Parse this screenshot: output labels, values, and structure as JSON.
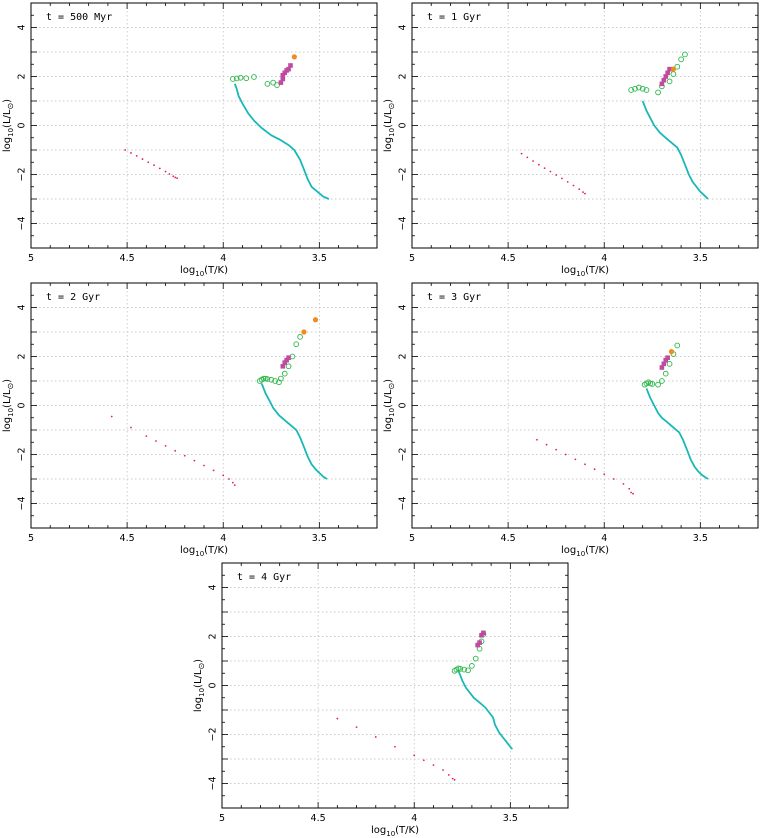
{
  "colors": {
    "main_sequence": "#19b8b8",
    "low_mass": "#e0206e",
    "giant_ring": "#2db84a",
    "agb": "#c04aa0",
    "supergiant": "#f08c1e"
  },
  "chart_data": [
    {
      "type": "scatter",
      "title": "t = 500 Myr",
      "xlabel": "log10(T/K)",
      "ylabel": "log10(L/L⊙)",
      "xlim": [
        5,
        3.2
      ],
      "ylim": [
        -5,
        5
      ],
      "grid": true,
      "xticks": [
        "5",
        "4.5",
        "4",
        "3.5"
      ],
      "yticks": [
        "4",
        "2",
        "0",
        "−2",
        "−4"
      ],
      "series": [
        {
          "kind": "line",
          "color_key": "main_sequence",
          "x": [
            3.94,
            3.93,
            3.92,
            3.9,
            3.87,
            3.84,
            3.8,
            3.75,
            3.7,
            3.66,
            3.63,
            3.6,
            3.58,
            3.56,
            3.54,
            3.51,
            3.48,
            3.45
          ],
          "y": [
            1.7,
            1.5,
            1.2,
            0.9,
            0.5,
            0.2,
            -0.1,
            -0.4,
            -0.6,
            -0.8,
            -1.0,
            -1.4,
            -1.8,
            -2.2,
            -2.5,
            -2.7,
            -2.9,
            -3.0
          ]
        },
        {
          "kind": "dots",
          "color_key": "low_mass",
          "x": [
            4.51,
            4.48,
            4.45,
            4.42,
            4.39,
            4.36,
            4.33,
            4.3,
            4.28,
            4.26,
            4.25,
            4.24
          ],
          "y": [
            -1.0,
            -1.12,
            -1.24,
            -1.37,
            -1.5,
            -1.62,
            -1.75,
            -1.88,
            -1.98,
            -2.07,
            -2.12,
            -2.15
          ]
        },
        {
          "kind": "rings",
          "color_key": "giant_ring",
          "x": [
            3.95,
            3.93,
            3.91,
            3.88,
            3.84,
            3.77,
            3.74,
            3.72
          ],
          "y": [
            1.9,
            1.92,
            1.95,
            1.93,
            1.98,
            1.7,
            1.75,
            1.65
          ]
        },
        {
          "kind": "squares",
          "color_key": "agb",
          "x": [
            3.7,
            3.69,
            3.69,
            3.68,
            3.67,
            3.66,
            3.65
          ],
          "y": [
            1.75,
            1.9,
            2.05,
            2.15,
            2.25,
            2.3,
            2.45
          ]
        },
        {
          "kind": "disks",
          "color_key": "supergiant",
          "x": [
            3.63
          ],
          "y": [
            2.8
          ]
        }
      ]
    },
    {
      "type": "scatter",
      "title": "t = 1 Gyr",
      "xlabel": "log10(T/K)",
      "ylabel": "log10(L/L⊙)",
      "xlim": [
        5,
        3.2
      ],
      "ylim": [
        -5,
        5
      ],
      "grid": true,
      "xticks": [
        "5",
        "4.5",
        "4",
        "3.5"
      ],
      "yticks": [
        "4",
        "2",
        "0",
        "−2",
        "−4"
      ],
      "series": [
        {
          "kind": "line",
          "color_key": "main_sequence",
          "x": [
            3.8,
            3.79,
            3.78,
            3.76,
            3.74,
            3.71,
            3.68,
            3.65,
            3.62,
            3.6,
            3.58,
            3.56,
            3.54,
            3.52,
            3.5,
            3.48,
            3.46
          ],
          "y": [
            1.0,
            0.8,
            0.6,
            0.3,
            0.0,
            -0.3,
            -0.5,
            -0.7,
            -0.9,
            -1.2,
            -1.6,
            -2.0,
            -2.3,
            -2.5,
            -2.7,
            -2.85,
            -3.0
          ]
        },
        {
          "kind": "dots",
          "color_key": "low_mass",
          "x": [
            4.43,
            4.4,
            4.37,
            4.34,
            4.31,
            4.28,
            4.25,
            4.22,
            4.19,
            4.16,
            4.13,
            4.11,
            4.1
          ],
          "y": [
            -1.15,
            -1.3,
            -1.45,
            -1.6,
            -1.74,
            -1.88,
            -2.02,
            -2.16,
            -2.3,
            -2.45,
            -2.6,
            -2.72,
            -2.78
          ]
        },
        {
          "kind": "rings",
          "color_key": "giant_ring",
          "x": [
            3.86,
            3.84,
            3.82,
            3.8,
            3.78,
            3.72,
            3.7,
            3.66,
            3.64,
            3.62,
            3.6,
            3.58
          ],
          "y": [
            1.45,
            1.5,
            1.55,
            1.5,
            1.45,
            1.35,
            1.6,
            1.8,
            2.1,
            2.4,
            2.7,
            2.9
          ]
        },
        {
          "kind": "squares",
          "color_key": "agb",
          "x": [
            3.7,
            3.69,
            3.68,
            3.67,
            3.66
          ],
          "y": [
            1.7,
            1.85,
            2.0,
            2.15,
            2.3
          ]
        },
        {
          "kind": "disks",
          "color_key": "supergiant",
          "x": [
            3.64
          ],
          "y": [
            2.3
          ]
        }
      ]
    },
    {
      "type": "scatter",
      "title": "t = 2 Gyr",
      "xlabel": "log10(T/K)",
      "ylabel": "log10(L/L⊙)",
      "xlim": [
        5,
        3.2
      ],
      "ylim": [
        -5,
        5
      ],
      "grid": true,
      "xticks": [
        "5",
        "4.5",
        "4",
        "3.5"
      ],
      "yticks": [
        "4",
        "2",
        "0",
        "−2",
        "−4"
      ],
      "series": [
        {
          "kind": "line",
          "color_key": "main_sequence",
          "x": [
            3.8,
            3.79,
            3.78,
            3.76,
            3.74,
            3.71,
            3.68,
            3.65,
            3.62,
            3.6,
            3.58,
            3.56,
            3.54,
            3.52,
            3.5,
            3.48,
            3.46
          ],
          "y": [
            0.9,
            0.7,
            0.5,
            0.2,
            -0.1,
            -0.4,
            -0.6,
            -0.8,
            -1.0,
            -1.3,
            -1.7,
            -2.1,
            -2.4,
            -2.6,
            -2.75,
            -2.9,
            -3.0
          ]
        },
        {
          "kind": "dots",
          "color_key": "low_mass",
          "x": [
            4.58,
            4.48,
            4.4,
            4.35,
            4.3,
            4.25,
            4.2,
            4.15,
            4.1,
            4.05,
            4.0,
            3.97,
            3.95,
            3.94
          ],
          "y": [
            -0.45,
            -0.9,
            -1.25,
            -1.45,
            -1.65,
            -1.85,
            -2.05,
            -2.25,
            -2.45,
            -2.65,
            -2.85,
            -3.0,
            -3.15,
            -3.25
          ]
        },
        {
          "kind": "rings",
          "color_key": "giant_ring",
          "x": [
            3.81,
            3.8,
            3.79,
            3.78,
            3.77,
            3.75,
            3.73,
            3.71,
            3.7,
            3.68,
            3.66,
            3.64,
            3.62,
            3.6
          ],
          "y": [
            1.0,
            1.05,
            1.1,
            1.1,
            1.08,
            1.05,
            1.0,
            0.95,
            1.1,
            1.3,
            1.6,
            2.0,
            2.5,
            2.8
          ]
        },
        {
          "kind": "squares",
          "color_key": "agb",
          "x": [
            3.69,
            3.68,
            3.67,
            3.66
          ],
          "y": [
            1.6,
            1.75,
            1.85,
            1.95
          ]
        },
        {
          "kind": "disks",
          "color_key": "supergiant",
          "x": [
            3.52,
            3.58
          ],
          "y": [
            3.5,
            3.0
          ]
        }
      ]
    },
    {
      "type": "scatter",
      "title": "t = 3 Gyr",
      "xlabel": "log10(T/K)",
      "ylabel": "log10(L/L⊙)",
      "xlim": [
        5,
        3.2
      ],
      "ylim": [
        -5,
        5
      ],
      "grid": true,
      "xticks": [
        "5",
        "4.5",
        "4",
        "3.5"
      ],
      "yticks": [
        "4",
        "2",
        "0",
        "−2",
        "−4"
      ],
      "series": [
        {
          "kind": "line",
          "color_key": "main_sequence",
          "x": [
            3.78,
            3.77,
            3.76,
            3.74,
            3.72,
            3.7,
            3.67,
            3.64,
            3.61,
            3.59,
            3.57,
            3.55,
            3.53,
            3.51,
            3.49,
            3.47,
            3.46
          ],
          "y": [
            0.7,
            0.5,
            0.3,
            0.0,
            -0.3,
            -0.5,
            -0.7,
            -0.9,
            -1.1,
            -1.4,
            -1.8,
            -2.2,
            -2.5,
            -2.7,
            -2.85,
            -2.95,
            -3.0
          ]
        },
        {
          "kind": "dots",
          "color_key": "low_mass",
          "x": [
            4.35,
            4.3,
            4.25,
            4.2,
            4.15,
            4.1,
            4.05,
            4.0,
            3.95,
            3.9,
            3.87,
            3.86,
            3.85
          ],
          "y": [
            -1.4,
            -1.6,
            -1.8,
            -2.0,
            -2.2,
            -2.4,
            -2.6,
            -2.8,
            -3.0,
            -3.2,
            -3.4,
            -3.55,
            -3.6
          ]
        },
        {
          "kind": "rings",
          "color_key": "giant_ring",
          "x": [
            3.79,
            3.78,
            3.77,
            3.76,
            3.75,
            3.72,
            3.7,
            3.68,
            3.66,
            3.64,
            3.62
          ],
          "y": [
            0.85,
            0.9,
            0.95,
            0.9,
            0.88,
            0.85,
            1.0,
            1.3,
            1.7,
            2.1,
            2.45
          ]
        },
        {
          "kind": "squares",
          "color_key": "agb",
          "x": [
            3.7,
            3.69,
            3.68,
            3.67
          ],
          "y": [
            1.55,
            1.7,
            1.85,
            1.95
          ]
        },
        {
          "kind": "disks",
          "color_key": "supergiant",
          "x": [
            3.65
          ],
          "y": [
            2.2
          ]
        }
      ]
    },
    {
      "type": "scatter",
      "title": "t = 4 Gyr",
      "xlabel": "log10(T/K)",
      "ylabel": "log10(L/L⊙)",
      "xlim": [
        5,
        3.2
      ],
      "ylim": [
        -5,
        5
      ],
      "grid": true,
      "xticks": [
        "5",
        "4.5",
        "4",
        "3.5"
      ],
      "yticks": [
        "4",
        "2",
        "0",
        "−2",
        "−4"
      ],
      "series": [
        {
          "kind": "line",
          "color_key": "main_sequence",
          "x": [
            3.77,
            3.76,
            3.75,
            3.73,
            3.71,
            3.69,
            3.66,
            3.63,
            3.61,
            3.59,
            3.58,
            3.56,
            3.54,
            3.52,
            3.5,
            3.49
          ],
          "y": [
            0.6,
            0.4,
            0.2,
            -0.1,
            -0.3,
            -0.5,
            -0.7,
            -0.9,
            -1.1,
            -1.3,
            -1.6,
            -1.9,
            -2.1,
            -2.3,
            -2.5,
            -2.6
          ]
        },
        {
          "kind": "dots",
          "color_key": "low_mass",
          "x": [
            4.4,
            4.3,
            4.2,
            4.1,
            4.0,
            3.95,
            3.9,
            3.85,
            3.82,
            3.8,
            3.79
          ],
          "y": [
            -1.35,
            -1.7,
            -2.1,
            -2.5,
            -2.85,
            -3.05,
            -3.25,
            -3.45,
            -3.65,
            -3.8,
            -3.85
          ]
        },
        {
          "kind": "rings",
          "color_key": "giant_ring",
          "x": [
            3.79,
            3.78,
            3.77,
            3.76,
            3.74,
            3.72,
            3.7,
            3.68,
            3.66,
            3.65,
            3.64
          ],
          "y": [
            0.6,
            0.65,
            0.7,
            0.68,
            0.65,
            0.62,
            0.8,
            1.1,
            1.5,
            1.8,
            2.1
          ]
        },
        {
          "kind": "squares",
          "color_key": "agb",
          "x": [
            3.67,
            3.66,
            3.65,
            3.64
          ],
          "y": [
            1.65,
            1.75,
            2.05,
            2.15
          ]
        },
        {
          "kind": "disks",
          "color_key": "supergiant",
          "x": [],
          "y": []
        }
      ]
    }
  ]
}
